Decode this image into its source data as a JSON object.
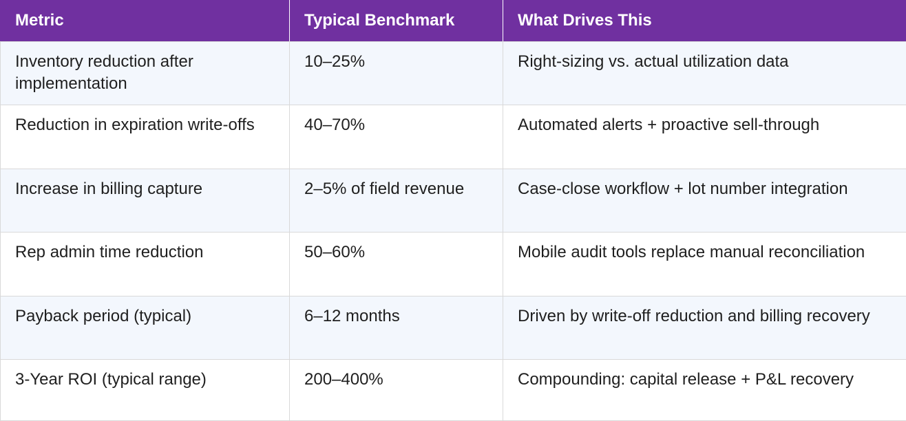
{
  "table": {
    "headers": [
      "Metric",
      "Typical Benchmark",
      "What Drives This"
    ],
    "rows": [
      {
        "metric": "Inventory reduction after implementation",
        "benchmark": "10–25%",
        "driver": "Right-sizing vs. actual utilization data"
      },
      {
        "metric": "Reduction in expiration write-offs",
        "benchmark": "40–70%",
        "driver": "Automated alerts + proactive sell-through"
      },
      {
        "metric": "Increase in billing capture",
        "benchmark": "2–5% of field revenue",
        "driver": "Case-close workflow + lot number integration"
      },
      {
        "metric": "Rep admin time reduction",
        "benchmark": "50–60%",
        "driver": "Mobile audit tools replace manual reconciliation"
      },
      {
        "metric": "Payback period (typical)",
        "benchmark": "6–12 months",
        "driver": "Driven by write-off reduction and billing recovery"
      },
      {
        "metric": "3-Year ROI (typical range)",
        "benchmark": "200–400%",
        "driver": "Compounding: capital release + P&L recovery"
      }
    ]
  },
  "colors": {
    "header_bg": "#7030a0",
    "header_text": "#ffffff",
    "row_alt_bg": "#f3f7fd",
    "border": "#d9d9d9"
  }
}
